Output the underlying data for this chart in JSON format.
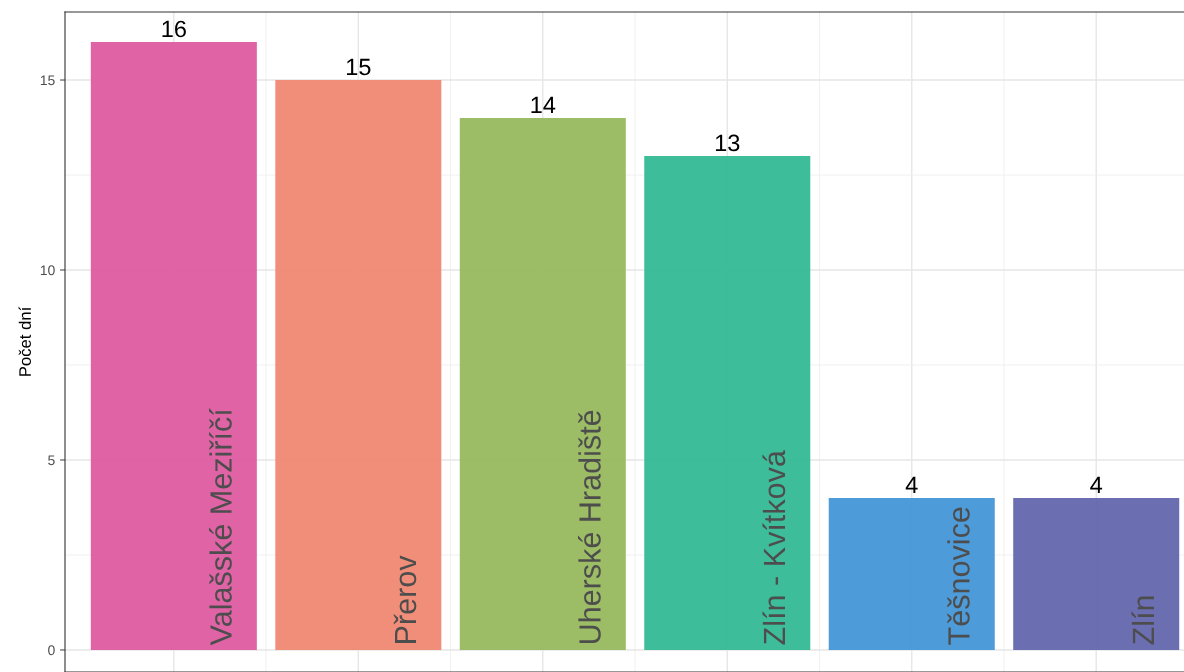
{
  "chart_data": {
    "type": "bar",
    "ylabel": "Počet dní",
    "categories": [
      "Valašské Meziříčí",
      "Přerov",
      "Uherské Hradiště",
      "Zlín - Kvítková",
      "Těšnovice",
      "Zlín"
    ],
    "values": [
      16,
      15,
      14,
      13,
      4,
      4
    ],
    "colors": [
      "#dd5ba0",
      "#f08872",
      "#97b95d",
      "#33b995",
      "#4596d8",
      "#6366ad"
    ],
    "ylim": [
      -0.58,
      16.79
    ],
    "yticks": [
      0,
      5,
      10,
      15
    ],
    "grid": true,
    "data_labels": true
  }
}
